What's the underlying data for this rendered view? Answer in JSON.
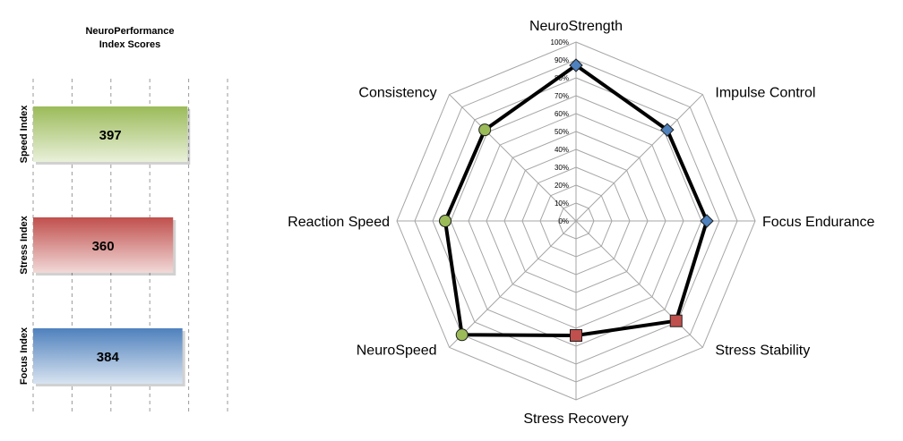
{
  "chart_data": [
    {
      "type": "bar",
      "orientation": "horizontal",
      "title": "NeuroPerformance\nIndex Scores",
      "categories": [
        "Speed Index",
        "Stress Index",
        "Focus Index"
      ],
      "values": [
        397,
        360,
        384
      ],
      "colors": [
        "#9bbb59",
        "#c0504d",
        "#4f81bd"
      ],
      "xlim": [
        0,
        500
      ],
      "grid": true
    },
    {
      "type": "radar",
      "axes": [
        "NeuroStrength",
        "Impulse Control",
        "Focus Endurance",
        "Stress Stability",
        "Stress Recovery",
        "NeuroSpeed",
        "Reaction Speed",
        "Consistency"
      ],
      "values": [
        0.87,
        0.72,
        0.73,
        0.79,
        0.64,
        0.9,
        0.73,
        0.72
      ],
      "markers": [
        "diamond",
        "diamond",
        "diamond",
        "square",
        "square",
        "circle",
        "circle",
        "circle"
      ],
      "marker_colors": [
        "#4f81bd",
        "#4f81bd",
        "#4f81bd",
        "#c0504d",
        "#c0504d",
        "#9bbb59",
        "#9bbb59",
        "#9bbb59"
      ],
      "ticks": [
        "0%",
        "10%",
        "20%",
        "30%",
        "40%",
        "50%",
        "60%",
        "70%",
        "80%",
        "90%",
        "100%"
      ],
      "rlim": [
        0,
        1
      ],
      "grid": true,
      "line_color": "#000000"
    }
  ]
}
